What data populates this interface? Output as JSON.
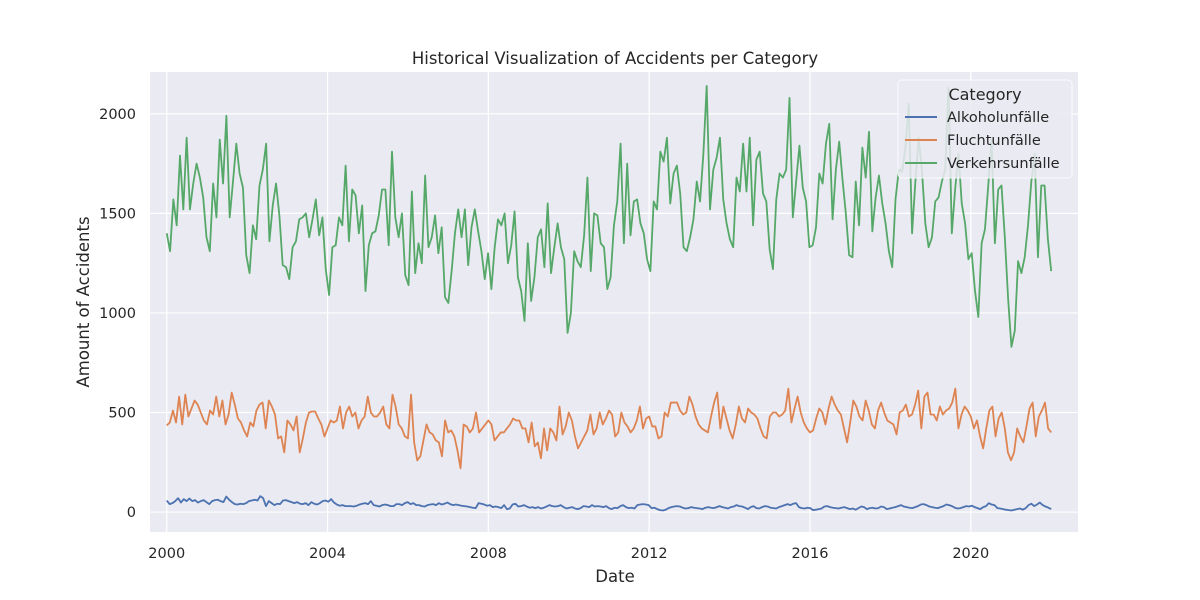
{
  "chart_data": {
    "type": "line",
    "title": "Historical Visualization of Accidents per Category",
    "xlabel": "Date",
    "ylabel": "Amount of Accidents",
    "x_range": [
      "2000-01",
      "2022-01"
    ],
    "xlim": [
      "1999-08",
      "2022-09"
    ],
    "ylim": [
      -100,
      2210
    ],
    "x_ticks": [
      "2000",
      "2004",
      "2008",
      "2012",
      "2016",
      "2020"
    ],
    "y_ticks": [
      0,
      500,
      1000,
      1500,
      2000
    ],
    "grid": true,
    "legend": {
      "title": "Category",
      "position": "top-right"
    },
    "colors": {
      "background": "#eaeaf2",
      "grid": "#ffffff"
    },
    "series": [
      {
        "name": "Alkoholunfälle",
        "color": "#4c72b0",
        "values": [
          58,
          40,
          45,
          55,
          70,
          48,
          65,
          55,
          68,
          55,
          60,
          48,
          55,
          60,
          50,
          40,
          55,
          60,
          62,
          55,
          50,
          78,
          62,
          50,
          40,
          38,
          42,
          40,
          45,
          55,
          58,
          62,
          58,
          80,
          70,
          30,
          55,
          45,
          35,
          42,
          40,
          58,
          60,
          55,
          50,
          45,
          50,
          42,
          40,
          45,
          35,
          50,
          42,
          38,
          45,
          55,
          58,
          52,
          65,
          48,
          38,
          32,
          35,
          30,
          30,
          30,
          28,
          32,
          38,
          42,
          45,
          40,
          55,
          35,
          32,
          28,
          35,
          38,
          35,
          30,
          30,
          40,
          40,
          35,
          45,
          50,
          40,
          45,
          35,
          35,
          30,
          28,
          35,
          38,
          40,
          35,
          45,
          38,
          42,
          48,
          40,
          35,
          38,
          35,
          32,
          30,
          28,
          25,
          22,
          20,
          45,
          42,
          38,
          32,
          35,
          25,
          28,
          25,
          20,
          35,
          15,
          18,
          38,
          42,
          28,
          30,
          35,
          28,
          22,
          25,
          20,
          25,
          18,
          22,
          28,
          35,
          30,
          28,
          30,
          35,
          25,
          18,
          22,
          25,
          18,
          15,
          20,
          30,
          28,
          25,
          35,
          28,
          30,
          28,
          25,
          30,
          20,
          15,
          22,
          20,
          30,
          35,
          25,
          20,
          22,
          18,
          35,
          38,
          40,
          38,
          35,
          20,
          22,
          15,
          10,
          8,
          12,
          20,
          25,
          28,
          30,
          28,
          22,
          18,
          20,
          25,
          22,
          20,
          18,
          15,
          22,
          25,
          22,
          20,
          25,
          30,
          25,
          22,
          18,
          25,
          28,
          35,
          30,
          28,
          22,
          15,
          25,
          30,
          20,
          18,
          25,
          30,
          28,
          22,
          20,
          18,
          25,
          30,
          35,
          40,
          35,
          42,
          45,
          25,
          20,
          18,
          22,
          20,
          10,
          12,
          15,
          18,
          28,
          30,
          25,
          22,
          20,
          18,
          22,
          25,
          20,
          15,
          18,
          12,
          20,
          28,
          25,
          15,
          20,
          22,
          18,
          20,
          28,
          25,
          15,
          18,
          22,
          25,
          30,
          35,
          28,
          25,
          22,
          20,
          25,
          30,
          38,
          40,
          35,
          28,
          25,
          22,
          20,
          25,
          30,
          38,
          35,
          30,
          22,
          18,
          20,
          25,
          30,
          28,
          32,
          25,
          20,
          15,
          25,
          30,
          45,
          38,
          35,
          20,
          18,
          15,
          12,
          10,
          8,
          12,
          15,
          18,
          12,
          20,
          35,
          42,
          30,
          38,
          48,
          35,
          28,
          22,
          15
        ]
      },
      {
        "name": "Fluchtunfälle",
        "color": "#dd8452",
        "values": [
          435,
          450,
          510,
          450,
          580,
          440,
          590,
          480,
          520,
          560,
          540,
          500,
          460,
          440,
          510,
          490,
          580,
          480,
          560,
          440,
          490,
          600,
          540,
          470,
          450,
          410,
          380,
          450,
          430,
          510,
          540,
          550,
          420,
          560,
          530,
          490,
          370,
          380,
          300,
          460,
          440,
          410,
          480,
          300,
          370,
          450,
          500,
          505,
          505,
          470,
          440,
          380,
          420,
          460,
          450,
          460,
          530,
          420,
          500,
          530,
          480,
          500,
          420,
          460,
          480,
          580,
          500,
          480,
          480,
          500,
          530,
          440,
          420,
          590,
          530,
          440,
          420,
          380,
          370,
          590,
          350,
          260,
          280,
          360,
          440,
          400,
          390,
          360,
          350,
          280,
          460,
          400,
          410,
          380,
          310,
          220,
          440,
          430,
          400,
          420,
          500,
          400,
          420,
          440,
          460,
          440,
          360,
          380,
          400,
          400,
          420,
          440,
          470,
          460,
          460,
          420,
          420,
          350,
          450,
          330,
          350,
          270,
          420,
          310,
          420,
          400,
          360,
          530,
          390,
          430,
          500,
          460,
          380,
          320,
          350,
          380,
          410,
          490,
          390,
          420,
          500,
          440,
          470,
          510,
          490,
          380,
          400,
          500,
          450,
          430,
          400,
          420,
          460,
          530,
          420,
          470,
          480,
          430,
          430,
          370,
          380,
          500,
          480,
          550,
          550,
          550,
          510,
          490,
          500,
          580,
          540,
          480,
          440,
          420,
          410,
          400,
          480,
          550,
          600,
          420,
          530,
          470,
          410,
          370,
          440,
          530,
          470,
          450,
          520,
          500,
          490,
          470,
          420,
          380,
          370,
          480,
          500,
          500,
          480,
          490,
          510,
          620,
          450,
          520,
          580,
          500,
          450,
          420,
          400,
          410,
          470,
          520,
          500,
          440,
          520,
          580,
          540,
          510,
          490,
          420,
          350,
          450,
          560,
          530,
          480,
          460,
          560,
          510,
          440,
          420,
          510,
          550,
          500,
          460,
          450,
          440,
          390,
          500,
          510,
          540,
          480,
          490,
          540,
          610,
          420,
          580,
          600,
          490,
          490,
          460,
          530,
          490,
          510,
          520,
          550,
          620,
          420,
          490,
          530,
          510,
          480,
          420,
          460,
          380,
          320,
          420,
          510,
          530,
          380,
          470,
          500,
          420,
          300,
          260,
          300,
          420,
          380,
          350,
          430,
          520,
          550,
          380,
          480,
          510,
          550,
          420,
          400
        ]
      },
      {
        "name": "Verkehrsunfälle",
        "color": "#55a868",
        "values": [
          1400,
          1310,
          1570,
          1440,
          1790,
          1520,
          1880,
          1520,
          1650,
          1750,
          1680,
          1580,
          1380,
          1310,
          1650,
          1480,
          1870,
          1650,
          1990,
          1480,
          1660,
          1850,
          1700,
          1630,
          1290,
          1200,
          1440,
          1370,
          1640,
          1720,
          1850,
          1360,
          1540,
          1650,
          1490,
          1240,
          1230,
          1170,
          1330,
          1360,
          1470,
          1480,
          1500,
          1380,
          1470,
          1570,
          1390,
          1480,
          1220,
          1090,
          1330,
          1340,
          1480,
          1440,
          1740,
          1360,
          1620,
          1590,
          1400,
          1540,
          1110,
          1340,
          1400,
          1410,
          1490,
          1620,
          1620,
          1340,
          1810,
          1480,
          1380,
          1500,
          1190,
          1140,
          1610,
          1200,
          1350,
          1250,
          1690,
          1330,
          1380,
          1490,
          1300,
          1430,
          1080,
          1050,
          1210,
          1400,
          1520,
          1380,
          1520,
          1240,
          1430,
          1520,
          1410,
          1310,
          1170,
          1300,
          1120,
          1330,
          1470,
          1440,
          1500,
          1250,
          1340,
          1510,
          1180,
          1110,
          960,
          1350,
          1060,
          1180,
          1380,
          1420,
          1230,
          1550,
          1200,
          1330,
          1450,
          1330,
          1270,
          900,
          1000,
          1310,
          1260,
          1230,
          1390,
          1680,
          1210,
          1500,
          1490,
          1350,
          1330,
          1120,
          1180,
          1440,
          1560,
          1850,
          1350,
          1750,
          1390,
          1560,
          1570,
          1450,
          1400,
          1270,
          1210,
          1560,
          1520,
          1810,
          1760,
          1880,
          1550,
          1700,
          1740,
          1600,
          1330,
          1310,
          1380,
          1470,
          1660,
          1560,
          1800,
          2140,
          1520,
          1720,
          1780,
          1880,
          1570,
          1450,
          1370,
          1330,
          1680,
          1610,
          1850,
          1610,
          1880,
          1440,
          1770,
          1810,
          1600,
          1560,
          1320,
          1220,
          1570,
          1700,
          1680,
          1720,
          2080,
          1480,
          1660,
          1840,
          1630,
          1560,
          1330,
          1340,
          1430,
          1700,
          1650,
          1850,
          1950,
          1470,
          1720,
          1860,
          1670,
          1500,
          1290,
          1280,
          1660,
          1440,
          1830,
          1680,
          1910,
          1410,
          1580,
          1690,
          1550,
          1450,
          1310,
          1230,
          1570,
          1720,
          1710,
          1830,
          2050,
          1400,
          1660,
          1880,
          1710,
          1450,
          1330,
          1380,
          1560,
          1580,
          1660,
          1720,
          2130,
          1400,
          1620,
          1800,
          1550,
          1450,
          1270,
          1300,
          1110,
          980,
          1350,
          1420,
          1640,
          1870,
          1350,
          1620,
          1640,
          1380,
          1070,
          830,
          910,
          1260,
          1200,
          1280,
          1440,
          1660,
          1800,
          1280,
          1640,
          1640,
          1370,
          1210
        ]
      }
    ]
  }
}
